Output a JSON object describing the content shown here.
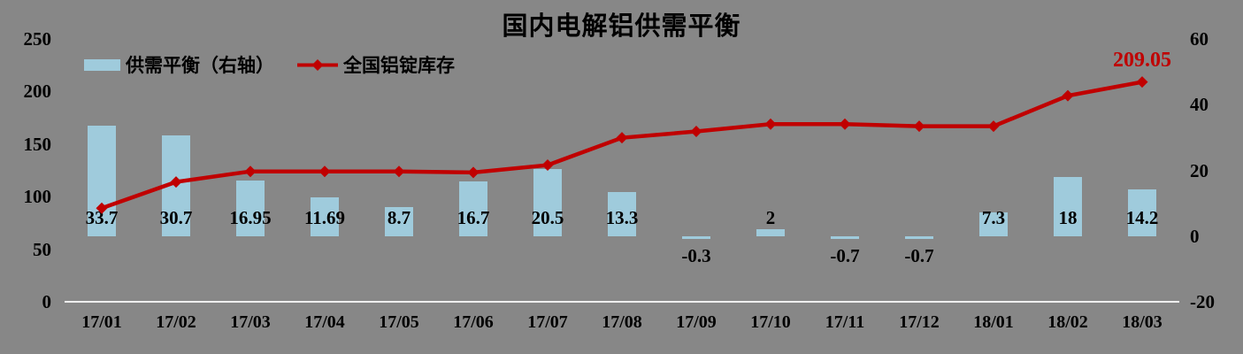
{
  "chart_data": {
    "type": "combo-bar-line",
    "title": "国内电解铝供需平衡",
    "categories": [
      "17/01",
      "17/02",
      "17/03",
      "17/04",
      "17/05",
      "17/06",
      "17/07",
      "17/08",
      "17/09",
      "17/10",
      "17/11",
      "17/12",
      "18/01",
      "18/02",
      "18/03"
    ],
    "series": [
      {
        "name": "供需平衡（右轴）",
        "chart_type": "bar",
        "axis": "right",
        "color": "#9FCBDC",
        "values": [
          33.7,
          30.7,
          16.95,
          11.69,
          8.7,
          16.7,
          20.5,
          13.3,
          -0.3,
          2,
          -0.7,
          -0.7,
          7.3,
          18,
          14.2
        ],
        "labels": [
          "33.7",
          "30.7",
          "16.95",
          "11.69",
          "8.7",
          "16.7",
          "20.5",
          "13.3",
          "-0.3",
          "2",
          "-0.7",
          "-0.7",
          "7.3",
          "18",
          "14.2"
        ]
      },
      {
        "name": "全国铝锭库存",
        "chart_type": "line",
        "axis": "left",
        "color": "#C00000",
        "values": [
          89,
          114,
          124,
          124,
          124,
          123,
          130,
          156,
          162,
          169,
          169,
          167,
          167,
          196,
          209.05
        ],
        "endpoint_label": "209.05",
        "endpoint_label_color": "#C00000"
      }
    ],
    "left_axis": {
      "min": 0,
      "max": 250,
      "ticks": [
        250,
        200,
        150,
        100,
        50,
        0
      ]
    },
    "right_axis": {
      "min": -20,
      "max": 60,
      "ticks": [
        60,
        40,
        20,
        0,
        -20
      ]
    },
    "legend_position": "top-left",
    "grid": false,
    "background_color": "#878787",
    "axis_line_color": "#EFEFEF",
    "text_color": "#000000"
  }
}
